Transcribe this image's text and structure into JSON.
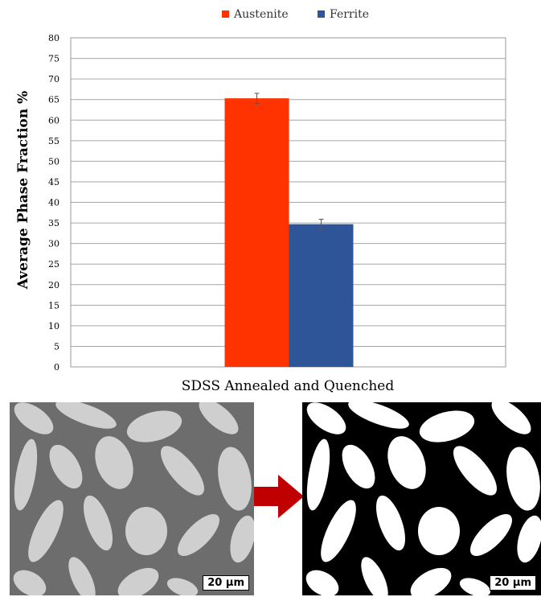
{
  "chart_data": {
    "type": "bar",
    "categories": [
      "SDSS Annealed and Quenched"
    ],
    "series": [
      {
        "name": "Austenite",
        "values": [
          65.3
        ],
        "error": [
          1.2
        ],
        "color": "#ff3300"
      },
      {
        "name": "Ferrite",
        "values": [
          34.7
        ],
        "error": [
          1.2
        ],
        "color": "#2e5597"
      }
    ],
    "title": "",
    "xlabel": "SDSS Annealed and Quenched",
    "ylabel": "Average Phase Fraction %",
    "ylim": [
      0,
      80
    ],
    "yticks": [
      0,
      5,
      10,
      15,
      20,
      25,
      30,
      35,
      40,
      45,
      50,
      55,
      60,
      65,
      70,
      75,
      80
    ],
    "grid": true,
    "legend": "top-center"
  },
  "micrographs": {
    "original_scale_label": "20 µm",
    "binary_scale_label": "20 µm",
    "arrow_color": "#c00000"
  }
}
